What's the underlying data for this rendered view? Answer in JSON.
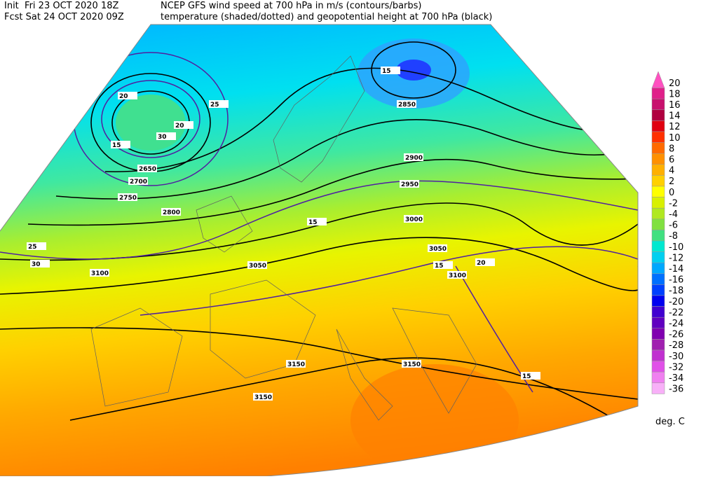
{
  "header": {
    "init": "Init  Fri 23 OCT 2020 18Z",
    "fcst": "Fcst Sat 24 OCT 2020 09Z",
    "title": "NCEP GFS wind speed at 700 hPa in m/s (contours/barbs)",
    "subtitle": "temperature (shaded/dotted) and geopotential height at 700 hPa (black)"
  },
  "colorbar": {
    "ticks": [
      20,
      18,
      16,
      14,
      12,
      10,
      8,
      6,
      4,
      2,
      0,
      -2,
      -4,
      -6,
      -8,
      -10,
      -12,
      -14,
      -16,
      -18,
      -20,
      -22,
      -24,
      -26,
      -28,
      -30,
      -32,
      -34,
      -36
    ],
    "colors": [
      "#ff50c0",
      "#e0208a",
      "#c8106e",
      "#b00040",
      "#e00010",
      "#ff3000",
      "#ff6a00",
      "#ff9000",
      "#ffb000",
      "#ffd000",
      "#ffff00",
      "#d8f000",
      "#b0e820",
      "#80e040",
      "#40e080",
      "#00e8d0",
      "#00d0f0",
      "#00a8ff",
      "#0070ff",
      "#0040ff",
      "#0000f0",
      "#4000d0",
      "#6000c0",
      "#8000b0",
      "#a020b0",
      "#c030d0",
      "#e050e8",
      "#f080f0",
      "#f8b0f8"
    ],
    "unit": "deg. C"
  },
  "map": {
    "contour_labels": [
      "2650",
      "2700",
      "2750",
      "2800",
      "2850",
      "2900",
      "2950",
      "3000",
      "3050",
      "3050",
      "3100",
      "3100",
      "3150",
      "3150",
      "3150",
      "15",
      "15",
      "15",
      "20",
      "20",
      "25",
      "25",
      "30",
      "30",
      "15",
      "20",
      "15"
    ]
  }
}
